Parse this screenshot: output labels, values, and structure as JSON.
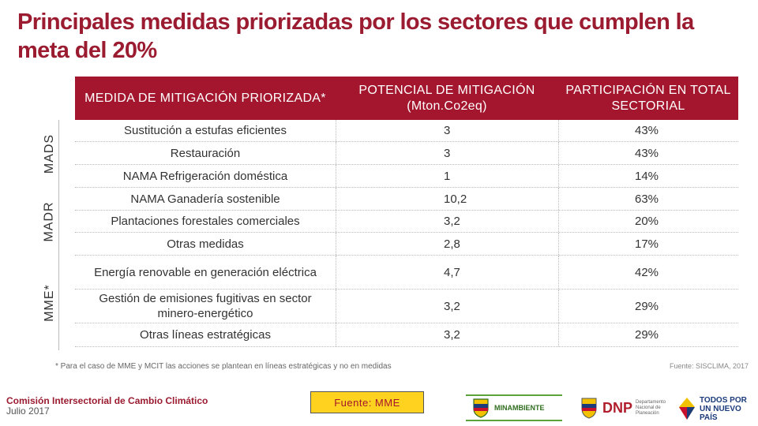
{
  "title": "Principales medidas priorizadas por los sectores que cumplen la meta del 20%",
  "table": {
    "headers": [
      "MEDIDA DE MITIGACIÓN PRIORIZADA*",
      "POTENCIAL DE MITIGACIÓN (Mton.Co2eq)",
      "PARTICIPACIÓN EN TOTAL SECTORIAL"
    ],
    "rows": [
      [
        "Sustitución a estufas eficientes",
        "3",
        "43%"
      ],
      [
        "Restauración",
        "3",
        "43%"
      ],
      [
        "NAMA Refrigeración doméstica",
        "1",
        "14%"
      ],
      [
        "NAMA Ganadería sostenible",
        "10,2",
        "63%"
      ],
      [
        "Plantaciones forestales comerciales",
        "3,2",
        "20%"
      ],
      [
        "Otras medidas",
        "2,8",
        "17%"
      ],
      [
        "Energía renovable en generación eléctrica",
        "4,7",
        "42%"
      ],
      [
        "Gestión de emisiones fugitivas en sector minero-energético",
        "3,2",
        "29%"
      ],
      [
        "Otras líneas estratégicas",
        "3,2",
        "29%"
      ]
    ]
  },
  "sectors": [
    "MADS",
    "MADR",
    "MME*"
  ],
  "footnote": "* Para el caso de MME y MCIT las acciones se plantean en líneas estratégicas y no en medidas",
  "footnote_source": "Fuente: SISCLIMA, 2017",
  "footer": {
    "org": "Comisión Intersectorial de Cambio Climático",
    "date": "Julio 2017",
    "source_box": "Fuente: MME",
    "logo_minambiente": "MINAMBIENTE",
    "logo_dnp": "DNP",
    "logo_dnp_sub": "Departamento Nacional de Planeación",
    "logo_tpnp": "TODOS POR UN NUEVO PAÍS"
  },
  "colors": {
    "accent": "#a3162d",
    "source_box_bg": "#ffd21f"
  }
}
